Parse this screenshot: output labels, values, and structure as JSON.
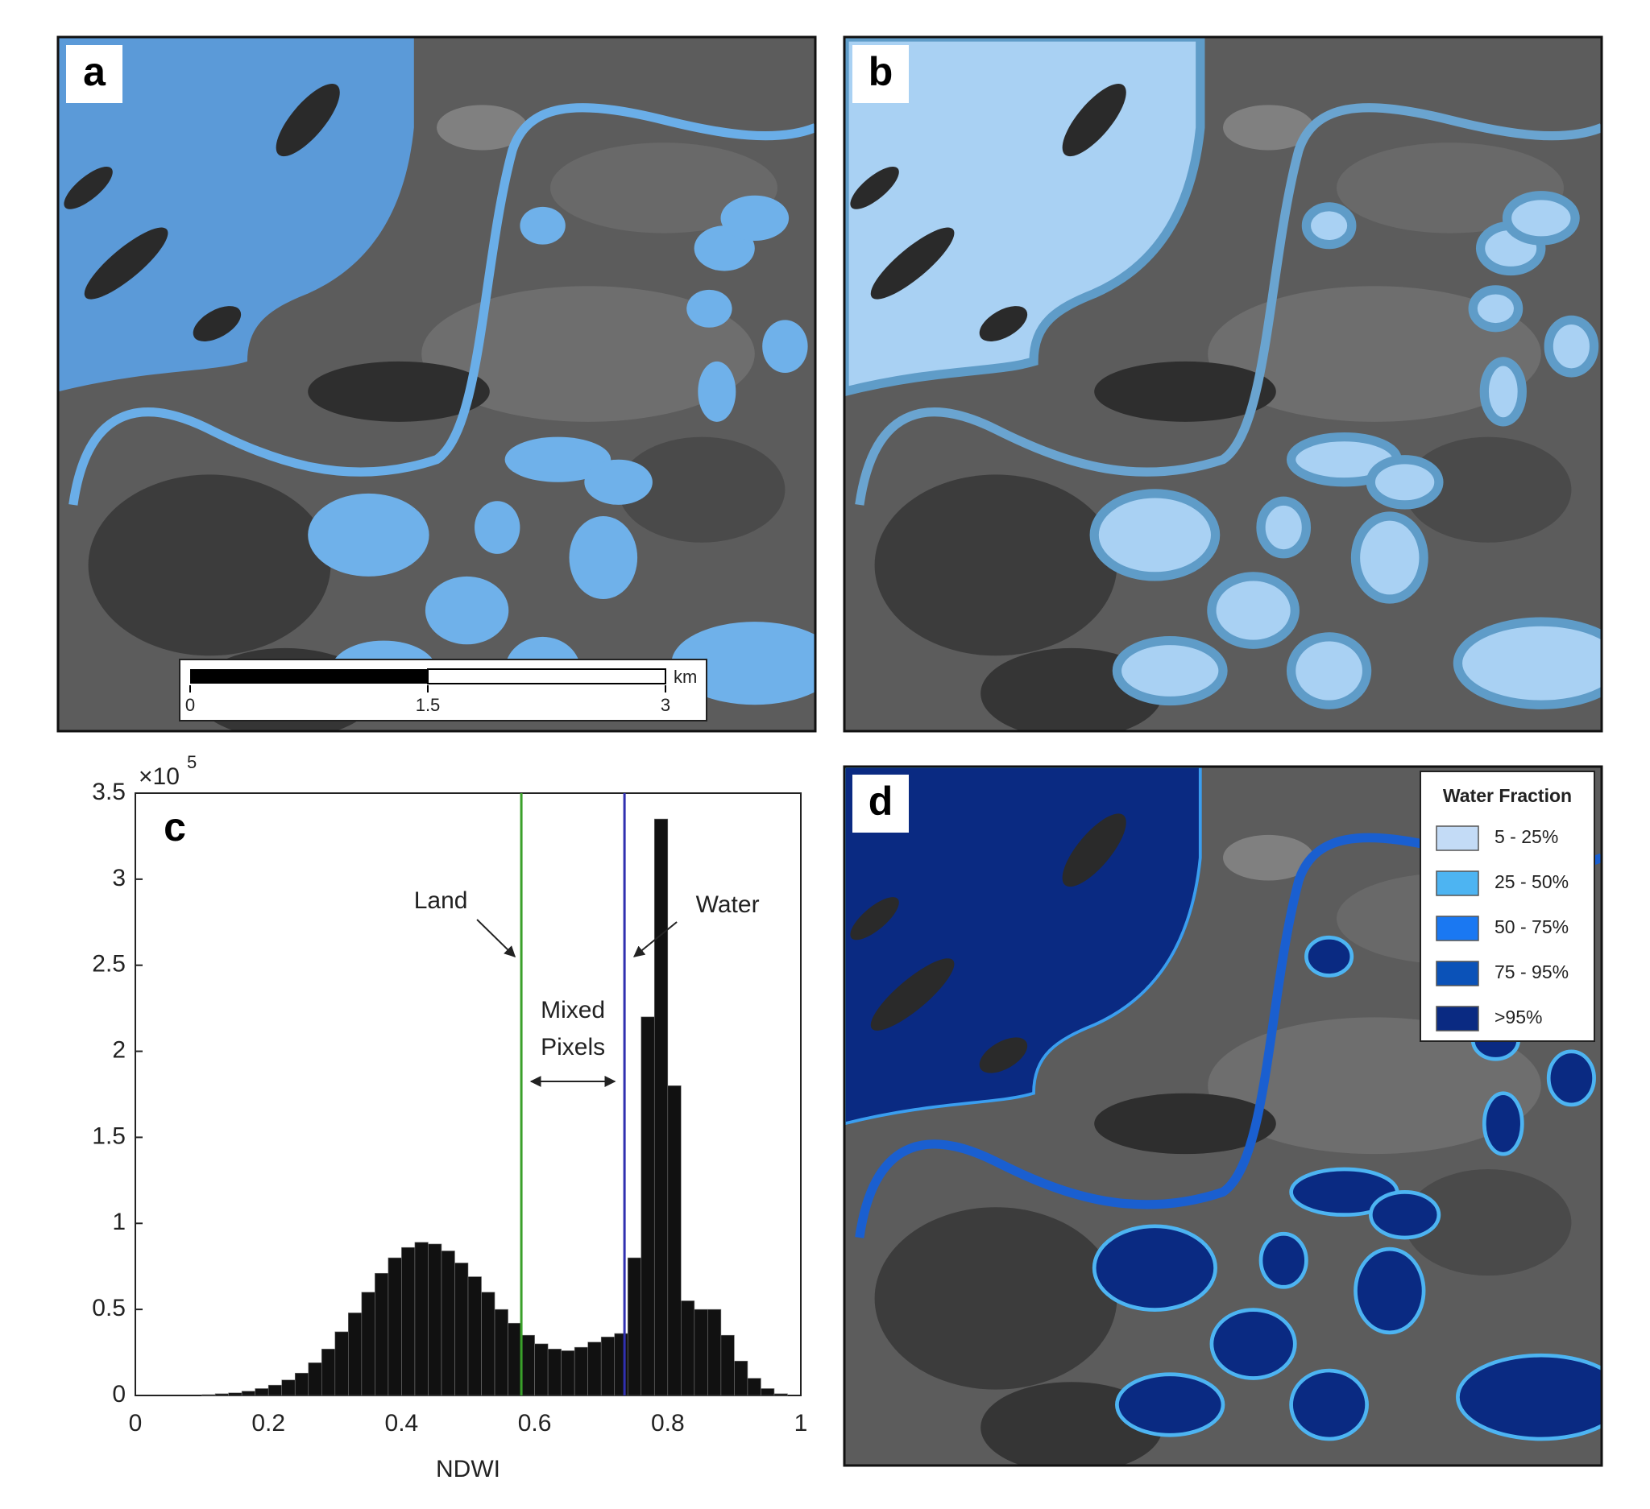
{
  "panel_labels": [
    "a",
    "b",
    "c",
    "d"
  ],
  "scale_bar": {
    "unit": "km",
    "ticks": [
      0,
      1.5,
      3
    ]
  },
  "legend": {
    "title": "Water Fraction",
    "items": [
      {
        "label": "5 - 25%",
        "color": "#c3dbf6"
      },
      {
        "label": "25 - 50%",
        "color": "#4db4f2"
      },
      {
        "label": "50 - 75%",
        "color": "#1a78f2"
      },
      {
        "label": "75 - 95%",
        "color": "#0b52b8"
      },
      {
        "label": ">95%",
        "color": "#0a2a82"
      }
    ]
  },
  "chart_data": {
    "type": "histogram",
    "x_label": "NDWI",
    "y_multiplier": "×10",
    "y_multiplier_exponent": "5",
    "color": "#111111",
    "bins": [
      0,
      0.02,
      0.04,
      0.06,
      0.08,
      0.1,
      0.12,
      0.14,
      0.16,
      0.18,
      0.2,
      0.22,
      0.24,
      0.26,
      0.28,
      0.3,
      0.32,
      0.34,
      0.36,
      0.38,
      0.4,
      0.42,
      0.44,
      0.46,
      0.48,
      0.5,
      0.52,
      0.54,
      0.56,
      0.58,
      0.6,
      0.62,
      0.64,
      0.66,
      0.68,
      0.7,
      0.72,
      0.74,
      0.76,
      0.78,
      0.8,
      0.82,
      0.84,
      0.86,
      0.88,
      0.9,
      0.92,
      0.94,
      0.96,
      0.98,
      1
    ],
    "counts": [
      0,
      0,
      0,
      0,
      0,
      500,
      1000,
      1500,
      2500,
      4000,
      6000,
      9000,
      13000,
      19000,
      27000,
      37000,
      48000,
      60000,
      71000,
      80000,
      86000,
      89000,
      88000,
      84000,
      77000,
      69000,
      60000,
      50000,
      42000,
      35000,
      30000,
      27000,
      26000,
      28000,
      31000,
      34000,
      36000,
      80000,
      220000,
      335000,
      180000,
      55000,
      50000,
      50000,
      35000,
      20000,
      10000,
      4000,
      1000,
      0
    ],
    "xlim": [
      0,
      1
    ],
    "xticks": [
      0,
      0.2,
      0.4,
      0.6,
      0.8,
      1
    ],
    "ylim": [
      0,
      350000
    ],
    "yticks": [
      0,
      {
        "value": 50000,
        "label": "0.5"
      },
      {
        "value": 100000,
        "label": "1"
      },
      {
        "value": 150000,
        "label": "1.5"
      },
      {
        "value": 200000,
        "label": "2"
      },
      {
        "value": 250000,
        "label": "2.5"
      },
      {
        "value": 300000,
        "label": "3"
      },
      {
        "value": 350000,
        "label": "3.5"
      }
    ],
    "thresholds": [
      {
        "name": "Land",
        "value": 0.58,
        "color": "#3aa02a"
      },
      {
        "name": "Water",
        "value": 0.735,
        "color": "#3030b0"
      }
    ],
    "annotation": [
      "Mixed",
      "Pixels"
    ]
  }
}
